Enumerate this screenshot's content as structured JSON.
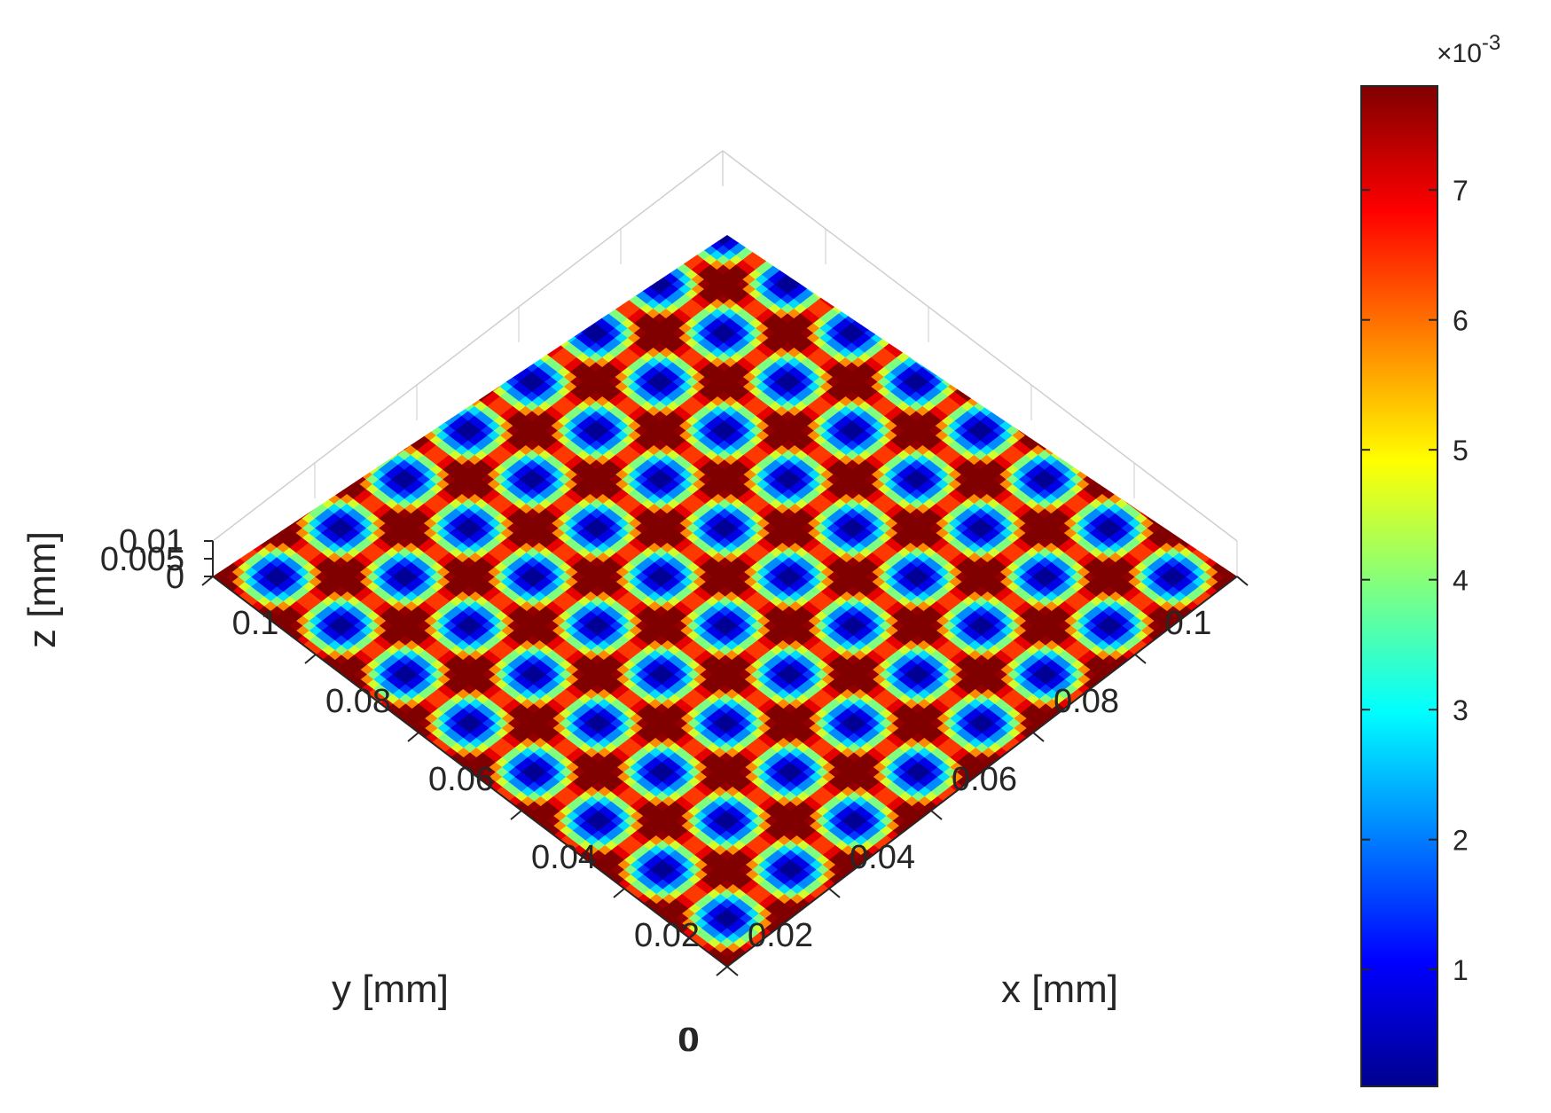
{
  "chart_data": {
    "type": "surface",
    "title": "",
    "xlabel": "x [mm]",
    "ylabel": "y [mm]",
    "zlabel": "z [mm]",
    "xlim": [
      0,
      0.1
    ],
    "ylim": [
      0,
      0.1
    ],
    "zlim": [
      0,
      0.01
    ],
    "xticks": [
      "0",
      "0.02",
      "0.04",
      "0.06",
      "0.08",
      "0.1"
    ],
    "yticks": [
      "0",
      "0.02",
      "0.04",
      "0.06",
      "0.08",
      "0.1"
    ],
    "zticks": [
      "0",
      "0.005",
      "0.01"
    ],
    "surface": {
      "pattern": "periodic dimple array",
      "period_mm": 0.0125,
      "z_min": 0.0001,
      "z_max": 0.0078
    },
    "colormap": "jet",
    "colorbar": {
      "range": [
        0.0001,
        0.0078
      ],
      "ticks": [
        "1",
        "2",
        "3",
        "4",
        "5",
        "6",
        "7"
      ],
      "exponent_base": "×10",
      "exponent_power": "-3",
      "placement": "right"
    },
    "grid": true
  }
}
